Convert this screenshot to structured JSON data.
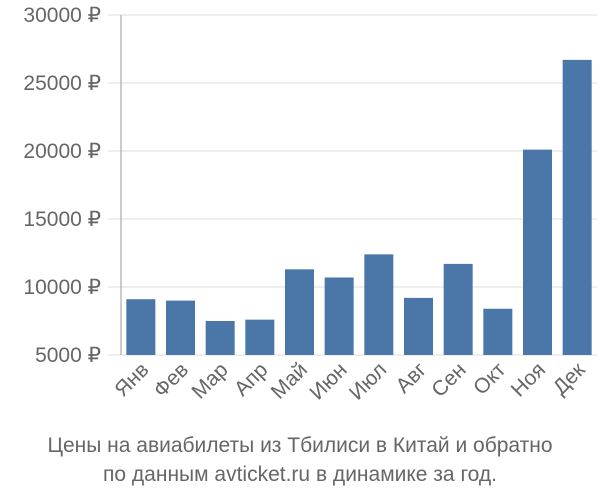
{
  "chart_data": {
    "type": "bar",
    "categories": [
      "Янв",
      "Фев",
      "Мар",
      "Апр",
      "Май",
      "Июн",
      "Июл",
      "Авг",
      "Сен",
      "Окт",
      "Ноя",
      "Дек"
    ],
    "values": [
      9100,
      9000,
      7500,
      7600,
      11300,
      10700,
      12400,
      9200,
      11700,
      8400,
      20100,
      26700
    ],
    "ylim": [
      5000,
      30000
    ],
    "y_ticks": [
      "30000 ₽",
      "25000 ₽",
      "20000 ₽",
      "15000 ₽",
      "10000 ₽",
      "5000 ₽"
    ],
    "y_tick_values": [
      30000,
      25000,
      20000,
      15000,
      10000,
      5000
    ],
    "grid": true,
    "legend": "none",
    "bar_color": "#4a76a8",
    "grid_color": "#dddddd",
    "axis_color": "#999999"
  },
  "caption": {
    "line1": "Цены на авиабилеты из Тбилиси в Китай и обратно",
    "line2": "по данным avticket.ru в динамике за год."
  }
}
